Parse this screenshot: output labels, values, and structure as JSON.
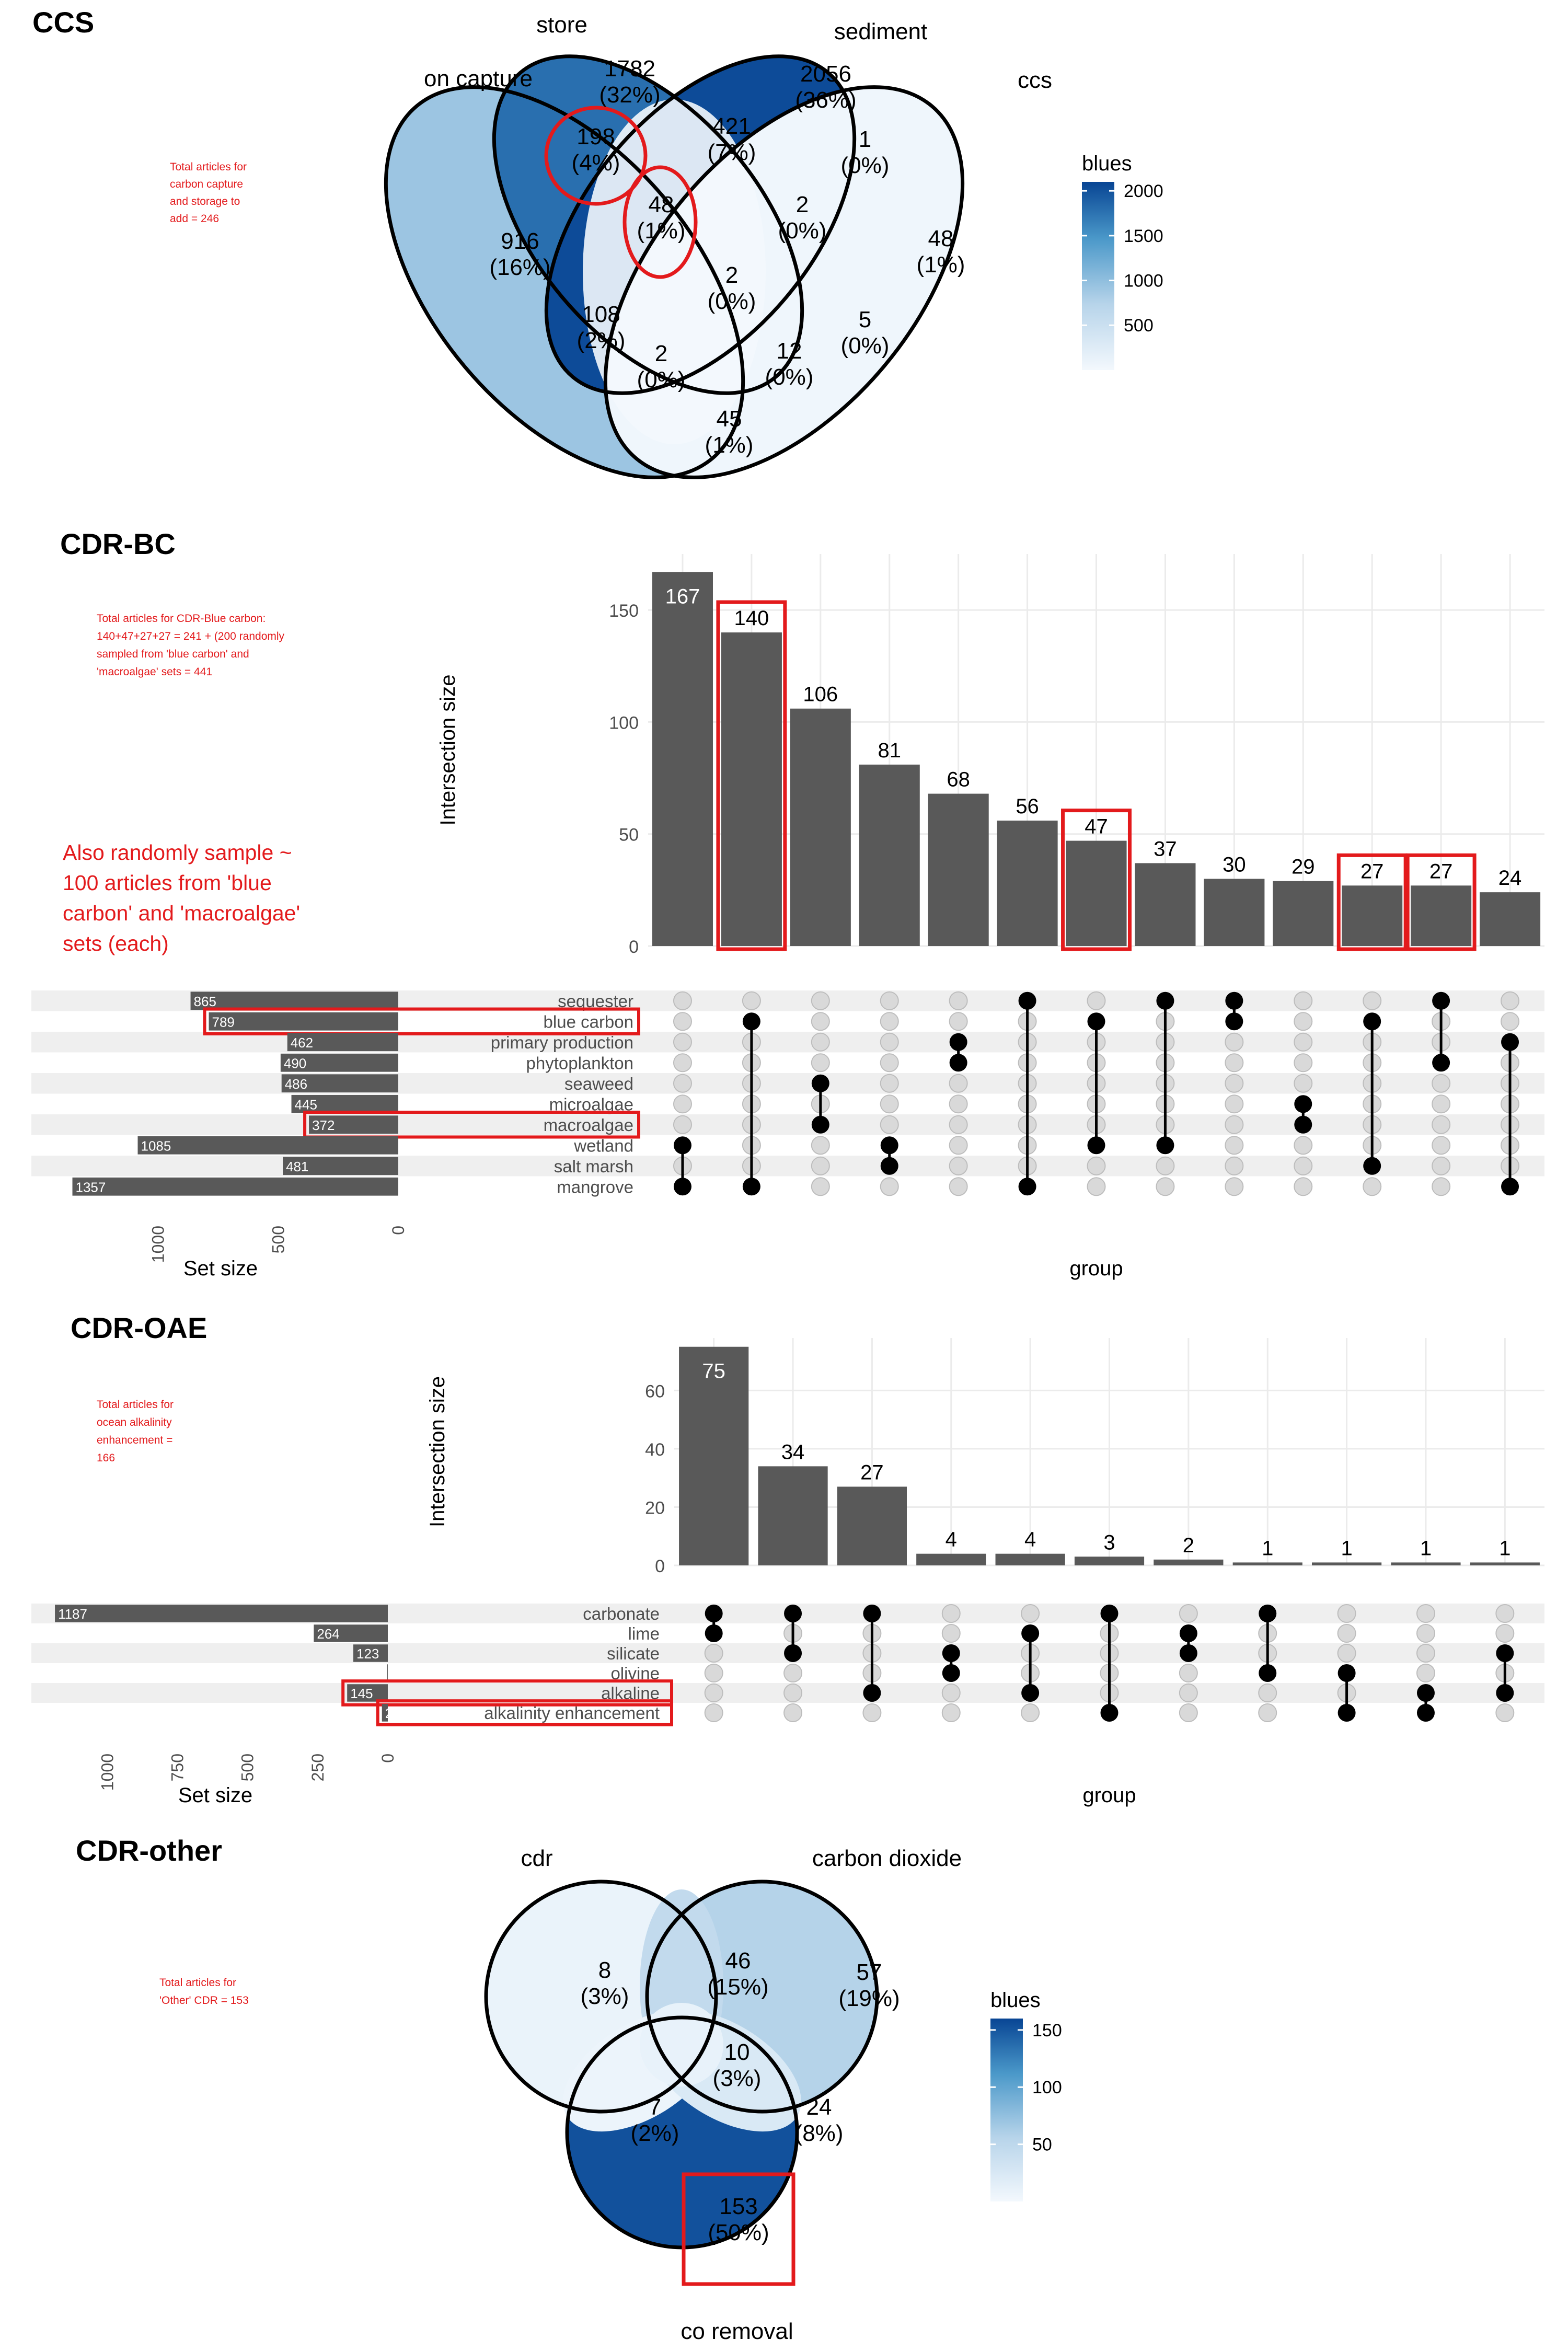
{
  "annotation_color": "#e31a1c",
  "bar_color": "#595959",
  "sections": {
    "ccs": {
      "title": "CCS",
      "note_lines": [
        "Total articles for",
        "carbon capture",
        "and storage to",
        "add = 246"
      ]
    },
    "cdr_bc": {
      "title": "CDR-BC",
      "note_lines": [
        "Total articles for CDR-Blue carbon:",
        "140+47+27+27 = 241 + (200 randomly",
        "sampled from 'blue carbon' and",
        "'macroalgae' sets = 441"
      ],
      "note2_lines": [
        "Also randomly sample ~",
        "100 articles from 'blue",
        "carbon' and 'macroalgae'",
        "sets (each)"
      ]
    },
    "cdr_oae": {
      "title": "CDR-OAE",
      "note_lines": [
        "Total articles for",
        "ocean alkalinity",
        "enhancement =",
        "166"
      ]
    },
    "cdr_other": {
      "title": "CDR-other",
      "note_lines": [
        "Total articles for",
        "'Other' CDR = 153"
      ]
    }
  },
  "chart_data": [
    {
      "type": "venn",
      "id": "ccs",
      "sets": [
        "carbon capture",
        "store",
        "sediment",
        "ccs"
      ],
      "set_labels_shown": [
        "on capture",
        "store",
        "sediment",
        "ccs"
      ],
      "regions": [
        {
          "sets": [
            "carbon capture"
          ],
          "count": 916,
          "pct": "16%"
        },
        {
          "sets": [
            "store"
          ],
          "count": 1782,
          "pct": "32%"
        },
        {
          "sets": [
            "sediment"
          ],
          "count": 2056,
          "pct": "36%"
        },
        {
          "sets": [
            "ccs"
          ],
          "count": 48,
          "pct": "1%"
        },
        {
          "sets": [
            "carbon capture",
            "store"
          ],
          "count": 198,
          "pct": "4%"
        },
        {
          "sets": [
            "store",
            "sediment"
          ],
          "count": 421,
          "pct": "7%"
        },
        {
          "sets": [
            "sediment",
            "ccs"
          ],
          "count": 1,
          "pct": "0%"
        },
        {
          "sets": [
            "carbon capture",
            "sediment"
          ],
          "count": 108,
          "pct": "2%"
        },
        {
          "sets": [
            "store",
            "ccs"
          ],
          "count": 5,
          "pct": "0%"
        },
        {
          "sets": [
            "carbon capture",
            "ccs"
          ],
          "count": 45,
          "pct": "1%"
        },
        {
          "sets": [
            "carbon capture",
            "store",
            "sediment"
          ],
          "count": 48,
          "pct": "1%"
        },
        {
          "sets": [
            "store",
            "sediment",
            "ccs"
          ],
          "count": 2,
          "pct": "0%"
        },
        {
          "sets": [
            "carbon capture",
            "sediment",
            "ccs"
          ],
          "count": 2,
          "pct": "0%"
        },
        {
          "sets": [
            "carbon capture",
            "store",
            "ccs"
          ],
          "count": 12,
          "pct": "0%"
        },
        {
          "sets": [
            "carbon capture",
            "store",
            "sediment",
            "ccs"
          ],
          "count": 2,
          "pct": "0%"
        }
      ],
      "legend": {
        "title": "blues",
        "ticks": [
          500,
          1000,
          1500,
          2000
        ],
        "range": [
          0,
          2100
        ]
      },
      "highlighted": [
        "198 (4%)",
        "48 (1%)"
      ]
    },
    {
      "type": "upset",
      "id": "cdr_bc",
      "ylabel": "Intersection size",
      "xlabel": "group",
      "set_size_label": "Set size",
      "ylim": [
        0,
        175
      ],
      "yticks": [
        0,
        50,
        100,
        150
      ],
      "set_size_ticks": [
        1000,
        500,
        0
      ],
      "set_size_max": 1480,
      "sets": [
        {
          "name": "sequester",
          "size": 865
        },
        {
          "name": "blue carbon",
          "size": 789
        },
        {
          "name": "primary production",
          "size": 462
        },
        {
          "name": "phytoplankton",
          "size": 490
        },
        {
          "name": "seaweed",
          "size": 486
        },
        {
          "name": "microalgae",
          "size": 445
        },
        {
          "name": "macroalgae",
          "size": 372
        },
        {
          "name": "wetland",
          "size": 1085
        },
        {
          "name": "salt marsh",
          "size": 481
        },
        {
          "name": "mangrove",
          "size": 1357
        }
      ],
      "intersections": [
        {
          "size": 167,
          "members": [
            "wetland",
            "mangrove"
          ]
        },
        {
          "size": 140,
          "members": [
            "blue carbon",
            "mangrove"
          ]
        },
        {
          "size": 106,
          "members": [
            "seaweed",
            "macroalgae"
          ]
        },
        {
          "size": 81,
          "members": [
            "wetland",
            "salt marsh"
          ]
        },
        {
          "size": 68,
          "members": [
            "primary production",
            "phytoplankton"
          ]
        },
        {
          "size": 56,
          "members": [
            "sequester",
            "mangrove"
          ]
        },
        {
          "size": 47,
          "members": [
            "blue carbon",
            "wetland"
          ]
        },
        {
          "size": 37,
          "members": [
            "sequester",
            "wetland"
          ]
        },
        {
          "size": 30,
          "members": [
            "sequester",
            "blue carbon"
          ]
        },
        {
          "size": 29,
          "members": [
            "microalgae",
            "macroalgae"
          ]
        },
        {
          "size": 27,
          "members": [
            "blue carbon",
            "salt marsh"
          ]
        },
        {
          "size": 27,
          "members": [
            "sequester",
            "phytoplankton"
          ]
        },
        {
          "size": 24,
          "members": [
            "primary production",
            "mangrove"
          ]
        }
      ],
      "highlighted_bars": [
        1,
        6,
        10,
        11
      ],
      "highlighted_sets": [
        "blue carbon",
        "macroalgae"
      ]
    },
    {
      "type": "upset",
      "id": "cdr_oae",
      "ylabel": "Intersection size",
      "xlabel": "group",
      "set_size_label": "Set size",
      "ylim": [
        0,
        78
      ],
      "yticks": [
        0,
        20,
        40,
        60
      ],
      "set_size_ticks": [
        1000,
        750,
        500,
        250,
        0
      ],
      "set_size_max": 1230,
      "sets": [
        {
          "name": "carbonate",
          "size": 1187
        },
        {
          "name": "lime",
          "size": 264
        },
        {
          "name": "silicate",
          "size": 123
        },
        {
          "name": "olivine",
          "size": 2
        },
        {
          "name": "alkaline",
          "size": 145
        },
        {
          "name": "alkalinity enhancement",
          "size": 21
        }
      ],
      "intersections": [
        {
          "size": 75,
          "members": [
            "carbonate",
            "lime"
          ]
        },
        {
          "size": 34,
          "members": [
            "carbonate",
            "silicate"
          ]
        },
        {
          "size": 27,
          "members": [
            "carbonate",
            "alkaline"
          ]
        },
        {
          "size": 4,
          "members": [
            "silicate",
            "olivine"
          ]
        },
        {
          "size": 4,
          "members": [
            "lime",
            "alkaline"
          ]
        },
        {
          "size": 3,
          "members": [
            "carbonate",
            "alkalinity enhancement"
          ]
        },
        {
          "size": 2,
          "members": [
            "lime",
            "silicate"
          ]
        },
        {
          "size": 1,
          "members": [
            "carbonate",
            "olivine"
          ]
        },
        {
          "size": 1,
          "members": [
            "olivine",
            "alkalinity enhancement"
          ]
        },
        {
          "size": 1,
          "members": [
            "alkaline",
            "alkalinity enhancement"
          ]
        },
        {
          "size": 1,
          "members": [
            "silicate",
            "alkaline"
          ]
        }
      ],
      "highlighted_bars": [],
      "highlighted_sets": [
        "alkaline",
        "alkalinity enhancement"
      ]
    },
    {
      "type": "venn",
      "id": "cdr_other",
      "sets": [
        "cdr",
        "carbon dioxide",
        "co removal"
      ],
      "regions": [
        {
          "sets": [
            "cdr"
          ],
          "count": 8,
          "pct": "3%"
        },
        {
          "sets": [
            "carbon dioxide"
          ],
          "count": 57,
          "pct": "19%"
        },
        {
          "sets": [
            "co removal"
          ],
          "count": 153,
          "pct": "50%"
        },
        {
          "sets": [
            "cdr",
            "carbon dioxide"
          ],
          "count": 46,
          "pct": "15%"
        },
        {
          "sets": [
            "cdr",
            "co removal"
          ],
          "count": 7,
          "pct": "2%"
        },
        {
          "sets": [
            "carbon dioxide",
            "co removal"
          ],
          "count": 24,
          "pct": "8%"
        },
        {
          "sets": [
            "cdr",
            "carbon dioxide",
            "co removal"
          ],
          "count": 10,
          "pct": "3%"
        }
      ],
      "legend": {
        "title": "blues",
        "ticks": [
          50,
          100,
          150
        ],
        "range": [
          0,
          160
        ]
      },
      "highlighted": [
        "153 (50%)"
      ]
    }
  ]
}
